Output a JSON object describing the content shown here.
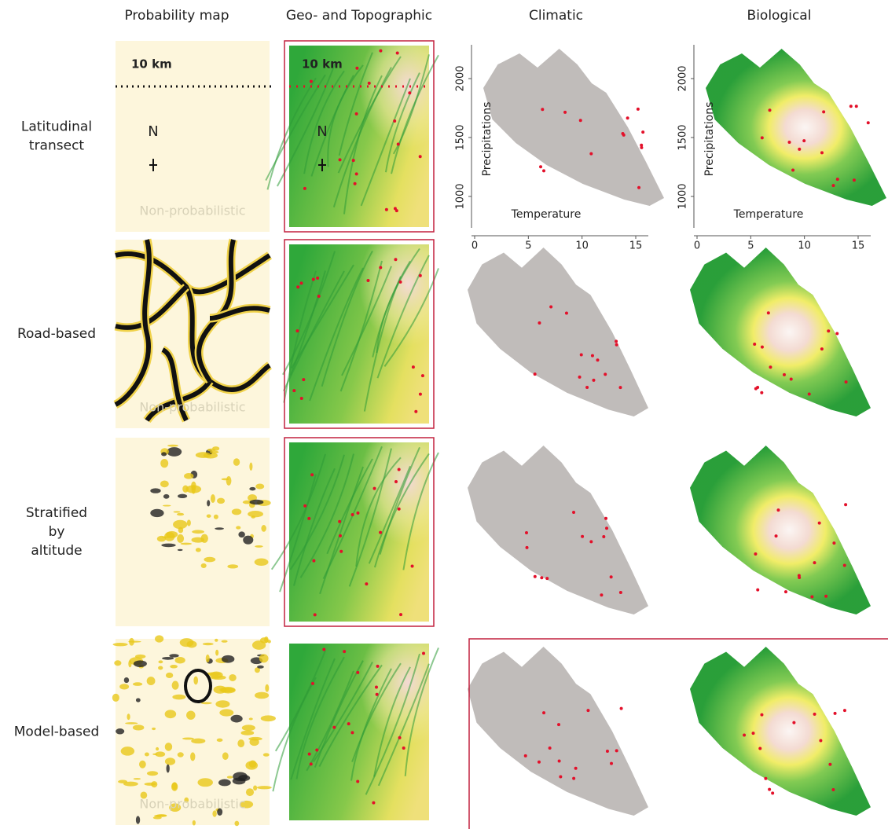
{
  "columns": [
    "Probability map",
    "Geo- and Topographic",
    "Climatic",
    "Biological"
  ],
  "rows": [
    {
      "label": "Latitudinal transect"
    },
    {
      "label": "Road-based"
    },
    {
      "label": "Stratified by altitude"
    },
    {
      "label": "Model-based"
    }
  ],
  "map_labels": {
    "scale": "10 km",
    "north": "N",
    "non_probabilistic": "Non-probabilistic"
  },
  "axes": {
    "x_label": "Temperature",
    "y_label": "Precipitations",
    "xticks": [
      0,
      5,
      10,
      15
    ],
    "yticks": [
      1000,
      1500,
      2000
    ]
  }
}
